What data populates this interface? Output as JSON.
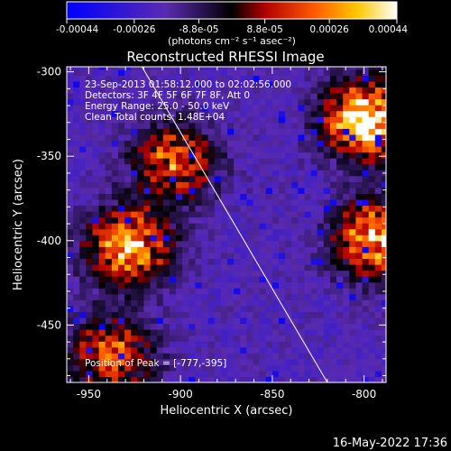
{
  "colorbar": {
    "tick_labels": [
      "-0.00044",
      "-0.00026",
      "-8.8e-05",
      "8.8e-05",
      "0.00026",
      "0.00044"
    ],
    "tick_values": [
      -0.00044,
      -0.00026,
      -8.8e-05,
      8.8e-05,
      0.00026,
      0.00044
    ],
    "range": [
      -0.00044,
      0.00044
    ],
    "unit_label": "(photons cm⁻² s⁻¹ asec⁻²)",
    "colors": [
      "#0000ff",
      "#5a2bb0",
      "#000000",
      "#b00000",
      "#ff5a00",
      "#ffc800",
      "#ffffff"
    ]
  },
  "chart_data": {
    "type": "heatmap",
    "title": "Reconstructed RHESSI Image",
    "xlabel": "Heliocentric X (arcsec)",
    "ylabel": "Heliocentric Y (arcsec)",
    "xlim": [
      -962,
      -788
    ],
    "ylim": [
      -484,
      -297
    ],
    "x_ticks": [
      -950,
      -900,
      -850,
      -800
    ],
    "y_ticks": [
      -450,
      -400,
      -350,
      -300
    ],
    "x_tick_labels": [
      "-950",
      "-900",
      "-850",
      "-800"
    ],
    "y_tick_labels": [
      "-450",
      "-400",
      "-350",
      "-300"
    ],
    "limb_line": [
      [
        -921,
        -297
      ],
      [
        -820,
        -484
      ]
    ],
    "bright_regions": [
      {
        "x": -930,
        "y": -405,
        "level": "high"
      },
      {
        "x": -905,
        "y": -355,
        "level": "medium"
      },
      {
        "x": -800,
        "y": -330,
        "level": "very high"
      },
      {
        "x": -795,
        "y": -400,
        "level": "high"
      },
      {
        "x": -940,
        "y": -470,
        "level": "medium"
      }
    ],
    "annotations": [
      "23-Sep-2013 01:58:12.000 to 02:02:56.000",
      "Detectors: 3F 4F 5F 6F 7F 8F, Att 0",
      "Energy Range: 25.0 - 50.0 keV",
      "Clean    Total counts: 1.48E+04"
    ],
    "peak_label": "Position of Peak = [-777,-395]"
  },
  "footer": {
    "timestamp": "16-May-2022 17:36"
  }
}
